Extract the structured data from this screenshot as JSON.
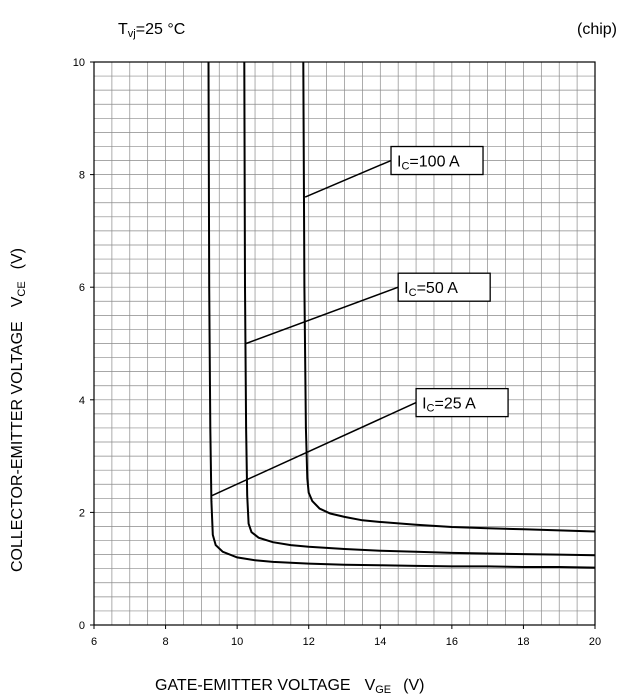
{
  "header": {
    "temp_T": "T",
    "temp_sub": "vj",
    "temp_value": "=25 °C",
    "chip": "(chip)"
  },
  "chart_data": {
    "type": "line",
    "xlabel": {
      "main": "GATE-EMITTER VOLTAGE",
      "sym": "V",
      "sub": "GE",
      "unit": "(V)"
    },
    "ylabel": {
      "main": "COLLECTOR-EMITTER VOLTAGE",
      "sym": "V",
      "sub": "CE",
      "unit": "(V)"
    },
    "xlim": [
      6,
      20
    ],
    "ylim": [
      0,
      10
    ],
    "xticks": [
      6,
      8,
      10,
      12,
      14,
      16,
      18,
      20
    ],
    "yticks": [
      0,
      2,
      4,
      6,
      8,
      10
    ],
    "grid": true,
    "series": [
      {
        "name": "IC=100 A",
        "label_prefix": "I",
        "label_sub": "C",
        "label_value": "=100 A",
        "x": [
          11.85,
          11.88,
          11.92,
          11.96,
          12.0,
          12.1,
          12.3,
          12.6,
          13.0,
          13.5,
          14.0,
          15.0,
          16.0,
          17.0,
          18.0,
          19.0,
          20.0
        ],
        "y": [
          10.0,
          6.0,
          3.5,
          2.6,
          2.35,
          2.2,
          2.07,
          1.98,
          1.92,
          1.86,
          1.83,
          1.78,
          1.74,
          1.72,
          1.7,
          1.68,
          1.66
        ]
      },
      {
        "name": "IC=50 A",
        "label_prefix": "I",
        "label_sub": "C",
        "label_value": "=50 A",
        "x": [
          10.2,
          10.22,
          10.25,
          10.28,
          10.32,
          10.4,
          10.6,
          11.0,
          11.5,
          12.0,
          13.0,
          14.0,
          15.0,
          16.0,
          17.0,
          18.0,
          19.0,
          20.0
        ],
        "y": [
          10.0,
          6.0,
          3.5,
          2.3,
          1.8,
          1.65,
          1.55,
          1.47,
          1.42,
          1.39,
          1.35,
          1.32,
          1.3,
          1.28,
          1.27,
          1.26,
          1.25,
          1.24
        ]
      },
      {
        "name": "IC=25 A",
        "label_prefix": "I",
        "label_sub": "C",
        "label_value": "=25 A",
        "x": [
          9.2,
          9.22,
          9.25,
          9.28,
          9.32,
          9.4,
          9.6,
          10.0,
          10.5,
          11.0,
          12.0,
          13.0,
          14.0,
          15.0,
          16.0,
          17.0,
          18.0,
          19.0,
          20.0
        ],
        "y": [
          10.0,
          6.0,
          3.5,
          2.2,
          1.6,
          1.42,
          1.3,
          1.2,
          1.15,
          1.12,
          1.09,
          1.07,
          1.06,
          1.05,
          1.04,
          1.04,
          1.03,
          1.03,
          1.02
        ]
      }
    ],
    "annotations": [
      {
        "series": 0,
        "from": [
          11.9,
          7.6
        ],
        "to": [
          14.3,
          8.25
        ]
      },
      {
        "series": 1,
        "from": [
          10.25,
          5.0
        ],
        "to": [
          14.5,
          6.0
        ]
      },
      {
        "series": 2,
        "from": [
          9.3,
          2.3
        ],
        "to": [
          15.0,
          3.95
        ]
      }
    ]
  }
}
